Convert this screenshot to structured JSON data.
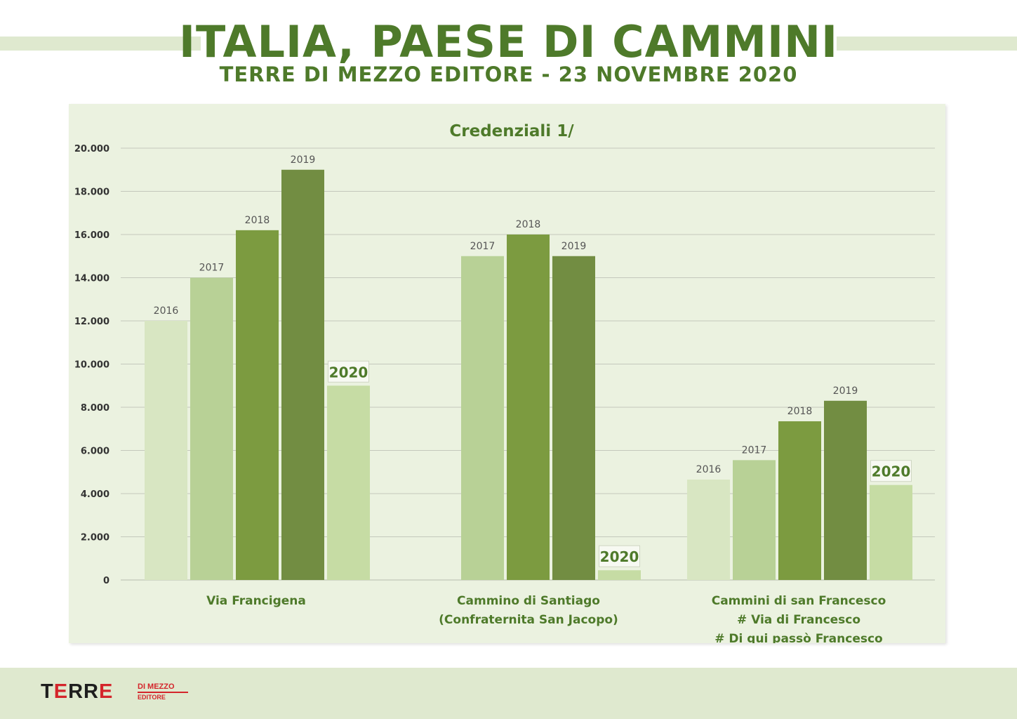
{
  "header": {
    "title": "ITALIA, PAESE DI CAMMINI",
    "subtitle": "TERRE DI MEZZO EDITORE - 23 NOVEMBRE 2020"
  },
  "footer": {
    "logo_main": "TERRE",
    "logo_small_1": "DI MEZZO",
    "logo_small_2": "EDITORE"
  },
  "colors": {
    "title_green": "#4e7a2a",
    "panel_background": "#ebf2e0",
    "band": "#dfe9cf",
    "logo_red": "#d4252b",
    "logo_dark": "#1e1e1e",
    "year_2016": "#d8e6c2",
    "year_2017": "#b8d196",
    "year_2018": "#7c9b40",
    "year_2019": "#728d42",
    "year_2020": "#c6dca4"
  },
  "chart_data": {
    "type": "bar",
    "title": "Credenziali 1/",
    "categories": [
      [
        "Via Francigena"
      ],
      [
        "Cammino di Santiago",
        "(Confraternita San Jacopo)"
      ],
      [
        "Cammini di san Francesco",
        "# Via di Francesco",
        "# Di qui passò Francesco"
      ]
    ],
    "ylim": [
      0,
      20000
    ],
    "yticks": [
      0,
      2000,
      4000,
      6000,
      8000,
      10000,
      12000,
      14000,
      16000,
      18000,
      20000
    ],
    "ytick_labels": [
      "0",
      "2.000",
      "4.000",
      "6.000",
      "8.000",
      "10.000",
      "12.000",
      "14.000",
      "16.000",
      "18.000",
      "20.000"
    ],
    "grid": true,
    "groups": [
      {
        "bars": [
          {
            "label": "2016",
            "value": 12000,
            "color": "#d8e6c2"
          },
          {
            "label": "2017",
            "value": 14000,
            "color": "#b8d196"
          },
          {
            "label": "2018",
            "value": 16200,
            "color": "#7c9b40"
          },
          {
            "label": "2019",
            "value": 19000,
            "color": "#728d42"
          },
          {
            "label": "2020",
            "value": 9000,
            "color": "#c6dca4",
            "highlight": true
          }
        ]
      },
      {
        "bars": [
          {
            "label": "2017",
            "value": 15000,
            "color": "#b8d196"
          },
          {
            "label": "2018",
            "value": 16000,
            "color": "#7c9b40"
          },
          {
            "label": "2019",
            "value": 15000,
            "color": "#728d42"
          },
          {
            "label": "2020",
            "value": 450,
            "color": "#c6dca4",
            "highlight": true
          }
        ]
      },
      {
        "bars": [
          {
            "label": "2016",
            "value": 4650,
            "color": "#d8e6c2"
          },
          {
            "label": "2017",
            "value": 5550,
            "color": "#b8d196"
          },
          {
            "label": "2018",
            "value": 7350,
            "color": "#7c9b40"
          },
          {
            "label": "2019",
            "value": 8300,
            "color": "#728d42"
          },
          {
            "label": "2020",
            "value": 4400,
            "color": "#c6dca4",
            "highlight": true
          }
        ]
      }
    ]
  }
}
